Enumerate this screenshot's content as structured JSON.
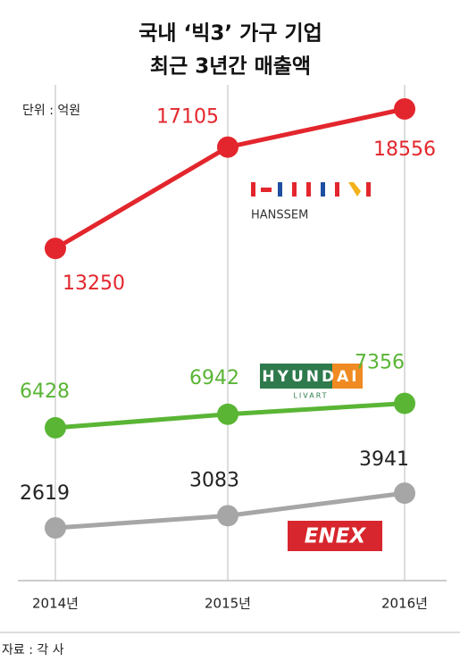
{
  "chart_data": {
    "type": "line",
    "title": [
      "국내 ‘빅3’ 가구 기업",
      "최근 3년간 매출액"
    ],
    "unit_label": "단위 : 억원",
    "categories": [
      "2014년",
      "2015년",
      "2016년"
    ],
    "series": [
      {
        "color": "#e3262d",
        "values": [
          13250,
          17105,
          18556
        ]
      },
      {
        "color": "#5ab535",
        "values": [
          6428,
          6942,
          7356
        ]
      },
      {
        "color": "#a6a6a6",
        "values": [
          2619,
          3083,
          3941
        ]
      }
    ],
    "annotations": [
      "HANSSEM",
      "HYUNDAI",
      "LIVART",
      "ENEX"
    ],
    "source": "자료 : 각 사",
    "grid": true
  }
}
